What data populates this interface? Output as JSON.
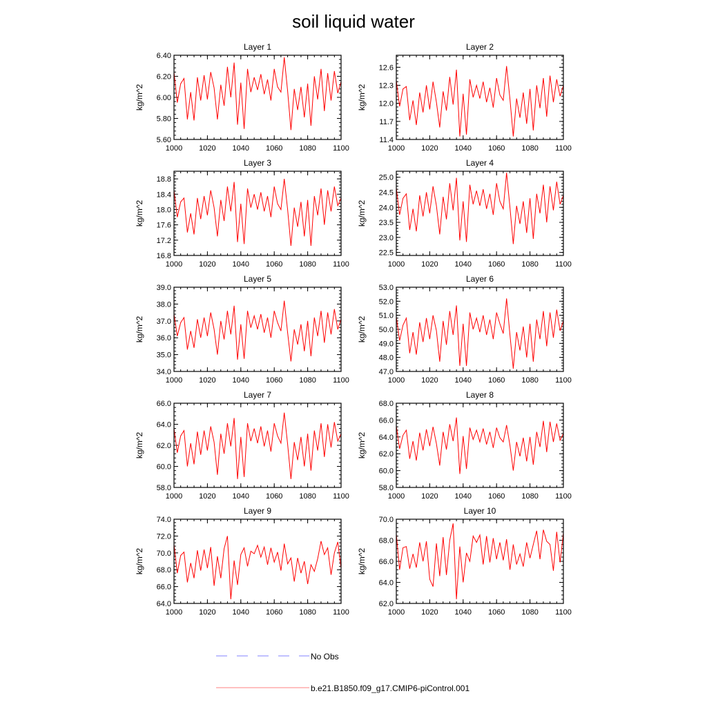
{
  "title": "soil liquid water",
  "colors": {
    "series": "#ff0000",
    "obs": "#8080ff",
    "axis": "#000000"
  },
  "legend": {
    "obs_label": "No Obs",
    "model_label": "b.e21.B1850.f09_g17.CMIP6-piControl.001"
  },
  "chart_data": [
    {
      "type": "line",
      "title": "Layer 1",
      "ylabel": "kg/m^2",
      "xlim": [
        1000,
        1100
      ],
      "ylim": [
        5.6,
        6.4
      ],
      "xticks": [
        1000,
        1020,
        1040,
        1060,
        1080,
        1100
      ],
      "yticks": [
        "5.60",
        "5.80",
        "6.00",
        "6.20",
        "6.40"
      ],
      "x": [
        1000,
        1002,
        1004,
        1006,
        1008,
        1010,
        1012,
        1014,
        1016,
        1018,
        1020,
        1022,
        1024,
        1026,
        1028,
        1030,
        1032,
        1034,
        1036,
        1038,
        1040,
        1042,
        1044,
        1046,
        1048,
        1050,
        1052,
        1054,
        1056,
        1058,
        1060,
        1062,
        1064,
        1066,
        1068,
        1070,
        1072,
        1074,
        1076,
        1078,
        1080,
        1082,
        1084,
        1086,
        1088,
        1090,
        1092,
        1094,
        1096,
        1098,
        1100
      ],
      "values": [
        6.24,
        5.95,
        6.13,
        6.18,
        5.79,
        6.05,
        5.78,
        6.19,
        5.97,
        6.21,
        5.98,
        6.24,
        6.09,
        5.79,
        6.12,
        5.92,
        6.29,
        6.0,
        6.33,
        5.74,
        6.14,
        5.7,
        6.27,
        6.05,
        6.19,
        6.07,
        6.22,
        6.03,
        6.17,
        5.97,
        6.27,
        6.1,
        6.05,
        6.38,
        6.06,
        5.69,
        6.08,
        5.88,
        6.1,
        5.81,
        6.13,
        5.73,
        6.2,
        5.98,
        6.27,
        5.87,
        6.23,
        5.97,
        6.25,
        6.04,
        6.15
      ]
    },
    {
      "type": "line",
      "title": "Layer 2",
      "ylabel": "kg/m^2",
      "xlim": [
        1000,
        1100
      ],
      "ylim": [
        11.4,
        12.8
      ],
      "xticks": [
        1000,
        1020,
        1040,
        1060,
        1080,
        1100
      ],
      "yticks": [
        "11.4",
        "11.7",
        "12.0",
        "12.3",
        "12.6"
      ],
      "x": [
        1000,
        1002,
        1004,
        1006,
        1008,
        1010,
        1012,
        1014,
        1016,
        1018,
        1020,
        1022,
        1024,
        1026,
        1028,
        1030,
        1032,
        1034,
        1036,
        1038,
        1040,
        1042,
        1044,
        1046,
        1048,
        1050,
        1052,
        1054,
        1056,
        1058,
        1060,
        1062,
        1064,
        1066,
        1068,
        1070,
        1072,
        1074,
        1076,
        1078,
        1080,
        1082,
        1084,
        1086,
        1088,
        1090,
        1092,
        1094,
        1096,
        1098,
        1100
      ],
      "values": [
        12.38,
        11.95,
        12.24,
        12.28,
        11.72,
        12.05,
        11.64,
        12.18,
        11.85,
        12.3,
        11.9,
        12.36,
        12.02,
        11.6,
        12.2,
        11.88,
        12.44,
        11.98,
        12.56,
        11.45,
        12.16,
        11.48,
        12.4,
        12.1,
        12.3,
        12.08,
        12.36,
        12.02,
        12.26,
        11.93,
        12.42,
        12.14,
        12.05,
        12.62,
        12.07,
        11.45,
        12.08,
        11.76,
        12.18,
        11.66,
        12.24,
        11.55,
        12.3,
        11.92,
        12.42,
        11.78,
        12.46,
        12.02,
        12.4,
        12.12,
        12.3
      ]
    },
    {
      "type": "line",
      "title": "Layer 3",
      "ylabel": "kg/m^2",
      "xlim": [
        1000,
        1100
      ],
      "ylim": [
        16.8,
        19.0
      ],
      "xticks": [
        1000,
        1020,
        1040,
        1060,
        1080,
        1100
      ],
      "yticks": [
        "16.8",
        "17.2",
        "17.6",
        "18.0",
        "18.4",
        "18.8"
      ],
      "x": [
        1000,
        1002,
        1004,
        1006,
        1008,
        1010,
        1012,
        1014,
        1016,
        1018,
        1020,
        1022,
        1024,
        1026,
        1028,
        1030,
        1032,
        1034,
        1036,
        1038,
        1040,
        1042,
        1044,
        1046,
        1048,
        1050,
        1052,
        1054,
        1056,
        1058,
        1060,
        1062,
        1064,
        1066,
        1068,
        1070,
        1072,
        1074,
        1076,
        1078,
        1080,
        1082,
        1084,
        1086,
        1088,
        1090,
        1092,
        1094,
        1096,
        1098,
        1100
      ],
      "values": [
        18.5,
        17.8,
        18.2,
        18.3,
        17.4,
        17.9,
        17.35,
        18.3,
        17.75,
        18.35,
        17.85,
        18.5,
        18.05,
        17.3,
        18.25,
        17.7,
        18.6,
        17.95,
        18.72,
        17.15,
        18.15,
        17.1,
        18.55,
        18.05,
        18.4,
        18.0,
        18.45,
        17.95,
        18.35,
        17.8,
        18.6,
        18.15,
        18.0,
        18.8,
        18.0,
        17.05,
        18.05,
        17.55,
        18.2,
        17.3,
        18.25,
        17.05,
        18.35,
        17.85,
        18.55,
        17.6,
        18.5,
        17.95,
        18.6,
        18.1,
        18.3
      ]
    },
    {
      "type": "line",
      "title": "Layer 4",
      "ylabel": "kg/m^2",
      "xlim": [
        1000,
        1100
      ],
      "ylim": [
        22.4,
        25.2
      ],
      "xticks": [
        1000,
        1020,
        1040,
        1060,
        1080,
        1100
      ],
      "yticks": [
        "22.5",
        "23.0",
        "23.5",
        "24.0",
        "24.5",
        "25.0"
      ],
      "x": [
        1000,
        1002,
        1004,
        1006,
        1008,
        1010,
        1012,
        1014,
        1016,
        1018,
        1020,
        1022,
        1024,
        1026,
        1028,
        1030,
        1032,
        1034,
        1036,
        1038,
        1040,
        1042,
        1044,
        1046,
        1048,
        1050,
        1052,
        1054,
        1056,
        1058,
        1060,
        1062,
        1064,
        1066,
        1068,
        1070,
        1072,
        1074,
        1076,
        1078,
        1080,
        1082,
        1084,
        1086,
        1088,
        1090,
        1092,
        1094,
        1096,
        1098,
        1100
      ],
      "values": [
        24.65,
        23.75,
        24.3,
        24.45,
        23.25,
        23.95,
        23.2,
        24.4,
        23.7,
        24.5,
        23.8,
        24.7,
        24.05,
        23.1,
        24.35,
        23.6,
        24.8,
        23.9,
        24.98,
        22.9,
        24.2,
        22.85,
        24.75,
        24.1,
        24.55,
        24.05,
        24.6,
        23.95,
        24.45,
        23.75,
        24.8,
        24.2,
        23.95,
        25.15,
        24.0,
        22.78,
        24.05,
        23.45,
        24.2,
        23.15,
        24.3,
        22.95,
        24.45,
        23.8,
        24.75,
        23.5,
        24.7,
        23.9,
        24.85,
        24.1,
        24.4
      ]
    },
    {
      "type": "line",
      "title": "Layer 5",
      "ylabel": "kg/m^2",
      "xlim": [
        1000,
        1100
      ],
      "ylim": [
        34.0,
        39.0
      ],
      "xticks": [
        1000,
        1020,
        1040,
        1060,
        1080,
        1100
      ],
      "yticks": [
        "34.0",
        "35.0",
        "36.0",
        "37.0",
        "38.0",
        "39.0"
      ],
      "x": [
        1000,
        1002,
        1004,
        1006,
        1008,
        1010,
        1012,
        1014,
        1016,
        1018,
        1020,
        1022,
        1024,
        1026,
        1028,
        1030,
        1032,
        1034,
        1036,
        1038,
        1040,
        1042,
        1044,
        1046,
        1048,
        1050,
        1052,
        1054,
        1056,
        1058,
        1060,
        1062,
        1064,
        1066,
        1068,
        1070,
        1072,
        1074,
        1076,
        1078,
        1080,
        1082,
        1084,
        1086,
        1088,
        1090,
        1092,
        1094,
        1096,
        1098,
        1100
      ],
      "values": [
        37.4,
        36.1,
        36.9,
        37.2,
        35.3,
        36.4,
        35.4,
        37.1,
        36.0,
        37.2,
        36.1,
        37.5,
        36.5,
        35.0,
        37.0,
        35.9,
        37.6,
        36.2,
        37.9,
        34.7,
        36.8,
        34.75,
        37.6,
        36.6,
        37.3,
        36.5,
        37.4,
        36.3,
        37.2,
        36.0,
        37.6,
        36.9,
        36.4,
        38.2,
        36.3,
        34.6,
        36.5,
        35.6,
        36.8,
        35.2,
        37.0,
        34.9,
        37.2,
        36.1,
        37.6,
        35.7,
        37.5,
        36.2,
        37.7,
        36.5,
        37.1
      ]
    },
    {
      "type": "line",
      "title": "Layer 6",
      "ylabel": "kg/m^2",
      "xlim": [
        1000,
        1100
      ],
      "ylim": [
        47.0,
        53.0
      ],
      "xticks": [
        1000,
        1020,
        1040,
        1060,
        1080,
        1100
      ],
      "yticks": [
        "47.0",
        "48.0",
        "49.0",
        "50.0",
        "51.0",
        "52.0",
        "53.0"
      ],
      "x": [
        1000,
        1002,
        1004,
        1006,
        1008,
        1010,
        1012,
        1014,
        1016,
        1018,
        1020,
        1022,
        1024,
        1026,
        1028,
        1030,
        1032,
        1034,
        1036,
        1038,
        1040,
        1042,
        1044,
        1046,
        1048,
        1050,
        1052,
        1054,
        1056,
        1058,
        1060,
        1062,
        1064,
        1066,
        1068,
        1070,
        1072,
        1074,
        1076,
        1078,
        1080,
        1082,
        1084,
        1086,
        1088,
        1090,
        1092,
        1094,
        1096,
        1098,
        1100
      ],
      "values": [
        50.9,
        49.2,
        50.3,
        50.8,
        48.3,
        49.8,
        48.2,
        50.5,
        49.1,
        50.8,
        49.3,
        51.0,
        49.9,
        47.7,
        50.6,
        48.9,
        51.3,
        49.6,
        51.7,
        47.4,
        50.4,
        47.4,
        51.2,
        50.0,
        50.8,
        49.8,
        51.0,
        49.6,
        50.7,
        49.3,
        51.2,
        50.4,
        49.7,
        52.2,
        49.6,
        47.2,
        49.8,
        48.5,
        50.2,
        48.0,
        50.4,
        47.7,
        50.7,
        49.3,
        51.3,
        48.8,
        51.2,
        49.4,
        51.4,
        49.9,
        50.6
      ]
    },
    {
      "type": "line",
      "title": "Layer 7",
      "ylabel": "kg/m^2",
      "xlim": [
        1000,
        1100
      ],
      "ylim": [
        58.0,
        66.0
      ],
      "xticks": [
        1000,
        1020,
        1040,
        1060,
        1080,
        1100
      ],
      "yticks": [
        "58.0",
        "60.0",
        "62.0",
        "64.0",
        "66.0"
      ],
      "x": [
        1000,
        1002,
        1004,
        1006,
        1008,
        1010,
        1012,
        1014,
        1016,
        1018,
        1020,
        1022,
        1024,
        1026,
        1028,
        1030,
        1032,
        1034,
        1036,
        1038,
        1040,
        1042,
        1044,
        1046,
        1048,
        1050,
        1052,
        1054,
        1056,
        1058,
        1060,
        1062,
        1064,
        1066,
        1068,
        1070,
        1072,
        1074,
        1076,
        1078,
        1080,
        1082,
        1084,
        1086,
        1088,
        1090,
        1092,
        1094,
        1096,
        1098,
        1100
      ],
      "values": [
        63.6,
        61.3,
        62.9,
        63.4,
        60.0,
        62.2,
        60.2,
        63.3,
        61.1,
        63.4,
        61.5,
        63.8,
        62.3,
        59.2,
        63.1,
        61.2,
        64.1,
        61.9,
        64.6,
        58.8,
        62.8,
        59.0,
        64.1,
        62.4,
        63.6,
        62.2,
        63.8,
        61.9,
        63.4,
        61.4,
        64.1,
        62.9,
        62.2,
        65.1,
        62.1,
        58.8,
        62.3,
        60.6,
        62.8,
        60.0,
        63.1,
        59.6,
        63.4,
        61.5,
        64.1,
        60.9,
        64.0,
        61.8,
        64.2,
        62.4,
        63.1
      ]
    },
    {
      "type": "line",
      "title": "Layer 8",
      "ylabel": "kg/m^2",
      "xlim": [
        1000,
        1100
      ],
      "ylim": [
        58.0,
        68.0
      ],
      "xticks": [
        1000,
        1020,
        1040,
        1060,
        1080,
        1100
      ],
      "yticks": [
        "58.0",
        "60.0",
        "62.0",
        "64.0",
        "66.0",
        "68.0"
      ],
      "x": [
        1000,
        1002,
        1004,
        1006,
        1008,
        1010,
        1012,
        1014,
        1016,
        1018,
        1020,
        1022,
        1024,
        1026,
        1028,
        1030,
        1032,
        1034,
        1036,
        1038,
        1040,
        1042,
        1044,
        1046,
        1048,
        1050,
        1052,
        1054,
        1056,
        1058,
        1060,
        1062,
        1064,
        1066,
        1068,
        1070,
        1072,
        1074,
        1076,
        1078,
        1080,
        1082,
        1084,
        1086,
        1088,
        1090,
        1092,
        1094,
        1096,
        1098,
        1100
      ],
      "values": [
        65.3,
        62.6,
        64.2,
        64.8,
        61.4,
        63.5,
        61.2,
        64.5,
        62.4,
        64.9,
        62.9,
        65.2,
        63.2,
        60.6,
        64.6,
        62.5,
        65.5,
        63.5,
        66.3,
        59.6,
        64.1,
        60.2,
        65.1,
        63.7,
        64.8,
        63.4,
        65.0,
        63.1,
        64.6,
        62.7,
        65.1,
        63.9,
        63.4,
        65.4,
        63.0,
        60.0,
        63.4,
        61.7,
        63.9,
        61.1,
        64.0,
        60.7,
        64.6,
        62.8,
        65.9,
        62.2,
        65.8,
        63.4,
        65.6,
        63.6,
        64.4
      ]
    },
    {
      "type": "line",
      "title": "Layer 9",
      "ylabel": "kg/m^2",
      "xlim": [
        1000,
        1100
      ],
      "ylim": [
        64.0,
        74.0
      ],
      "xticks": [
        1000,
        1020,
        1040,
        1060,
        1080,
        1100
      ],
      "yticks": [
        "64.0",
        "66.0",
        "68.0",
        "70.0",
        "72.0",
        "74.0"
      ],
      "x": [
        1000,
        1002,
        1004,
        1006,
        1008,
        1010,
        1012,
        1014,
        1016,
        1018,
        1020,
        1022,
        1024,
        1026,
        1028,
        1030,
        1032,
        1034,
        1036,
        1038,
        1040,
        1042,
        1044,
        1046,
        1048,
        1050,
        1052,
        1054,
        1056,
        1058,
        1060,
        1062,
        1064,
        1066,
        1068,
        1070,
        1072,
        1074,
        1076,
        1078,
        1080,
        1082,
        1084,
        1086,
        1088,
        1090,
        1092,
        1094,
        1096,
        1098,
        1100
      ],
      "values": [
        71.0,
        67.6,
        69.7,
        70.1,
        66.5,
        68.8,
        67.0,
        70.3,
        67.9,
        70.4,
        68.2,
        70.7,
        66.1,
        69.6,
        67.0,
        70.5,
        72.0,
        64.5,
        69.1,
        66.2,
        69.8,
        70.6,
        68.4,
        70.2,
        69.9,
        70.9,
        69.5,
        70.7,
        68.6,
        70.6,
        68.9,
        70.1,
        67.9,
        71.1,
        68.7,
        69.4,
        66.6,
        69.4,
        67.6,
        69.0,
        66.3,
        68.6,
        67.8,
        69.3,
        71.4,
        69.8,
        70.6,
        67.4,
        70.0,
        71.3,
        68.2
      ]
    },
    {
      "type": "line",
      "title": "Layer 10",
      "ylabel": "kg/m^2",
      "xlim": [
        1000,
        1100
      ],
      "ylim": [
        62.0,
        70.0
      ],
      "xticks": [
        1000,
        1020,
        1040,
        1060,
        1080,
        1100
      ],
      "yticks": [
        "62.0",
        "64.0",
        "66.0",
        "68.0",
        "70.0"
      ],
      "x": [
        1000,
        1002,
        1004,
        1006,
        1008,
        1010,
        1012,
        1014,
        1016,
        1018,
        1020,
        1022,
        1024,
        1026,
        1028,
        1030,
        1032,
        1034,
        1036,
        1038,
        1040,
        1042,
        1044,
        1046,
        1048,
        1050,
        1052,
        1054,
        1056,
        1058,
        1060,
        1062,
        1064,
        1066,
        1068,
        1070,
        1072,
        1074,
        1076,
        1078,
        1080,
        1082,
        1084,
        1086,
        1088,
        1090,
        1092,
        1094,
        1096,
        1098,
        1100
      ],
      "values": [
        68.6,
        65.2,
        67.3,
        67.4,
        65.3,
        66.7,
        65.4,
        67.8,
        66.0,
        67.9,
        64.3,
        63.6,
        67.7,
        64.6,
        68.3,
        64.7,
        68.0,
        69.6,
        62.4,
        67.4,
        64.0,
        66.8,
        66.0,
        68.4,
        67.8,
        68.5,
        65.7,
        68.4,
        65.9,
        68.2,
        66.2,
        67.8,
        66.1,
        68.1,
        65.2,
        67.6,
        65.7,
        66.7,
        65.5,
        67.8,
        66.3,
        67.6,
        68.9,
        66.2,
        69.0,
        67.9,
        67.6,
        65.1,
        68.8,
        65.9,
        68.7
      ]
    }
  ]
}
